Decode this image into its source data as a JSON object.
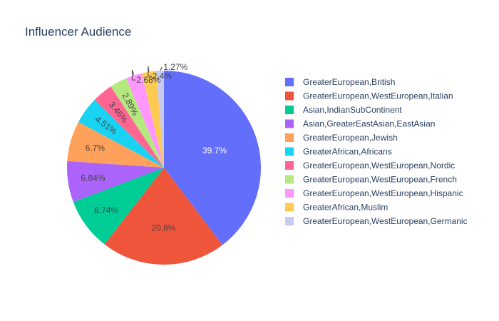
{
  "chart_data": {
    "type": "pie",
    "title": "Influencer Audience",
    "direction": "clockwise",
    "start_angle": "top",
    "legend_position": "right",
    "slices": [
      {
        "label": "GreaterEuropean,British",
        "value": 39.7,
        "text": "39.7%",
        "color": "#636efa",
        "text_position": "inside",
        "text_color": "#ffffff"
      },
      {
        "label": "GreaterEuropean,WestEuropean,Italian",
        "value": 20.8,
        "text": "20.8%",
        "color": "#EF553B",
        "text_position": "inside",
        "text_color": "#444444"
      },
      {
        "label": "Asian,IndianSubContinent",
        "value": 8.74,
        "text": "8.74%",
        "color": "#00cc96",
        "text_position": "inside",
        "text_color": "#444444"
      },
      {
        "label": "Asian,GreaterEastAsian,EastAsian",
        "value": 6.84,
        "text": "6.84%",
        "color": "#ab63fa",
        "text_position": "inside",
        "text_color": "#444444"
      },
      {
        "label": "GreaterEuropean,Jewish",
        "value": 6.7,
        "text": "6.7%",
        "color": "#FFA15A",
        "text_position": "inside",
        "text_color": "#444444"
      },
      {
        "label": "GreaterAfrican,Africans",
        "value": 4.51,
        "text": "4.51%",
        "color": "#19d3f3",
        "text_position": "inside-radial",
        "text_color": "#444444"
      },
      {
        "label": "GreaterEuropean,WestEuropean,Nordic",
        "value": 3.46,
        "text": "3.46%",
        "color": "#FF6692",
        "text_position": "inside-radial",
        "text_color": "#444444"
      },
      {
        "label": "GreaterEuropean,WestEuropean,French",
        "value": 2.89,
        "text": "2.89%",
        "color": "#B6E880",
        "text_position": "inside-radial",
        "text_color": "#444444"
      },
      {
        "label": "GreaterEuropean,WestEuropean,Hispanic",
        "value": 2.68,
        "text": "2.68%",
        "color": "#FF97FF",
        "text_position": "outside",
        "text_color": "#444444"
      },
      {
        "label": "GreaterAfrican,Muslim",
        "value": 2.4,
        "text": "2.4%",
        "color": "#FECB52",
        "text_position": "outside",
        "text_color": "#444444"
      },
      {
        "label": "GreaterEuropean,WestEuropean,Germanic",
        "value": 1.27,
        "text": "1.27%",
        "color": "#c6cbf4",
        "text_position": "outside",
        "text_color": "#444444"
      }
    ]
  }
}
